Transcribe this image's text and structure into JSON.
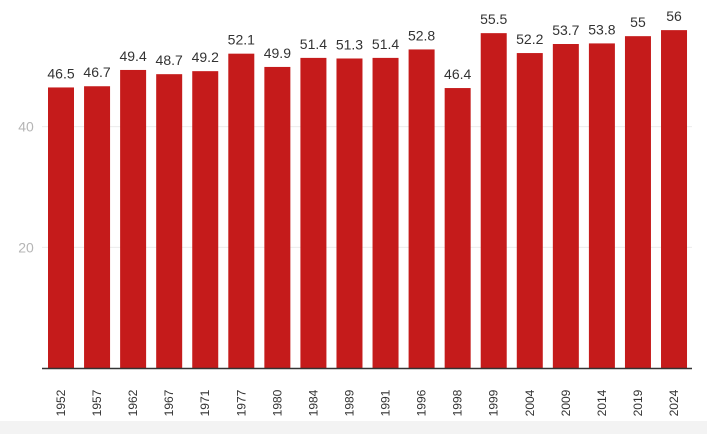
{
  "chart_data": {
    "type": "bar",
    "title": "",
    "xlabel": "",
    "ylabel": "",
    "ylim": [
      0,
      60
    ],
    "yticks": [
      20,
      40
    ],
    "grid": true,
    "bar_color": "#c51b1b",
    "categories": [
      "1952",
      "1957",
      "1962",
      "1967",
      "1971",
      "1977",
      "1980",
      "1984",
      "1989",
      "1991",
      "1996",
      "1998",
      "1999",
      "2004",
      "2009",
      "2014",
      "2019",
      "2024"
    ],
    "values": [
      46.5,
      46.7,
      49.4,
      48.7,
      49.2,
      52.1,
      49.9,
      51.4,
      51.3,
      51.4,
      52.8,
      46.4,
      55.5,
      52.2,
      53.7,
      53.8,
      55,
      56
    ],
    "value_labels": [
      "46.5",
      "46.7",
      "49.4",
      "48.7",
      "49.2",
      "52.1",
      "49.9",
      "51.4",
      "51.3",
      "51.4",
      "52.8",
      "46.4",
      "55.5",
      "52.2",
      "53.7",
      "53.8",
      "55",
      "56"
    ]
  }
}
